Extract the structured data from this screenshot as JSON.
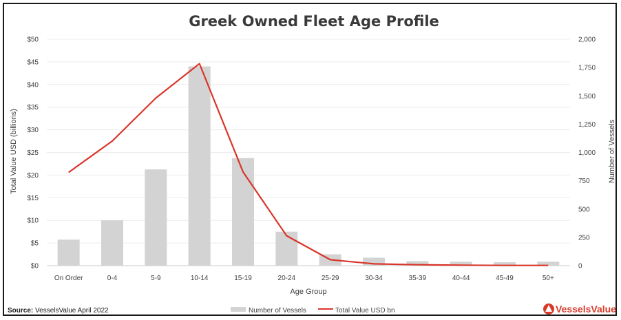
{
  "chart_data": {
    "type": "bar+line",
    "title": "Greek Owned Fleet Age Profile",
    "xlabel": "Age Group",
    "ylabel_left": "Total Value USD (billions)",
    "ylabel_right": "Number of Vessels",
    "categories": [
      "On Order",
      "0-4",
      "5-9",
      "10-14",
      "15-19",
      "20-24",
      "25-29",
      "30-34",
      "35-39",
      "40-44",
      "45-49",
      "50+"
    ],
    "left_ticks": [
      "$0",
      "$5",
      "$10",
      "$15",
      "$20",
      "$25",
      "$30",
      "$35",
      "$40",
      "$45",
      "$50"
    ],
    "right_ticks": [
      "0",
      "250",
      "500",
      "750",
      "1,000",
      "1,250",
      "1,500",
      "1,750",
      "2,000"
    ],
    "ylim_left": [
      0,
      50
    ],
    "ylim_right": [
      0,
      2000
    ],
    "grid": true,
    "legend_position": "bottom",
    "series": [
      {
        "name": "Number of Vessels",
        "type": "bar",
        "axis": "right",
        "color": "#d3d3d3",
        "values": [
          230,
          400,
          850,
          1760,
          950,
          300,
          100,
          70,
          40,
          35,
          30,
          35
        ]
      },
      {
        "name": "Total Value USD bn",
        "type": "line",
        "axis": "left",
        "color": "#d9352a",
        "values": [
          20.6,
          27.5,
          37.0,
          44.6,
          20.7,
          6.6,
          1.3,
          0.4,
          0.2,
          0.1,
          0.05,
          0.05
        ]
      }
    ]
  },
  "source_label": "Source:",
  "source_text": "VesselsValue April 2022",
  "brand": "VesselsValue"
}
